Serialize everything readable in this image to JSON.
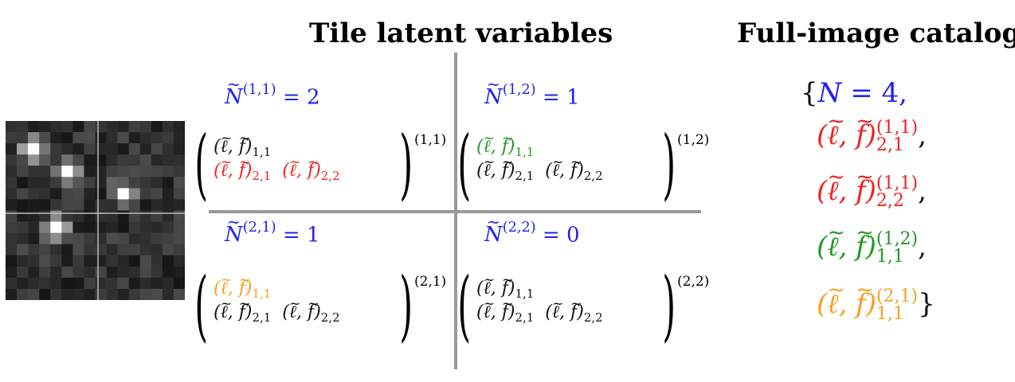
{
  "titles": {
    "tile": "Tile latent variables",
    "catalog": "Full-image catalog"
  },
  "colors": {
    "blue": "#2222ee",
    "red": "#ee2222",
    "green": "#229922",
    "orange": "#f5a023",
    "black": "#111111",
    "divider": "#999999"
  },
  "image": {
    "grid_size": 16,
    "stars": [
      {
        "col": 2,
        "row": 2,
        "intensity": 1.0
      },
      {
        "col": 5,
        "row": 4,
        "intensity": 0.95
      },
      {
        "col": 10,
        "row": 6,
        "intensity": 0.85
      },
      {
        "col": 4,
        "row": 9,
        "intensity": 1.0
      }
    ]
  },
  "tiles": {
    "t11": {
      "count": "= 2",
      "idx": "(1,1)",
      "count_idx": "(1,1)",
      "e11": "(",
      "e11b": ")",
      "s11": "1,1",
      "s21": "2,1",
      "s22": "2,2"
    },
    "t12": {
      "count": "= 1",
      "idx": "(1,2)",
      "count_idx": "(1,2)",
      "s11": "1,1",
      "s21": "2,1",
      "s22": "2,2"
    },
    "t21": {
      "count": "= 1",
      "idx": "(2,1)",
      "count_idx": "(2,1)",
      "s11": "1,1",
      "s21": "2,1",
      "s22": "2,2"
    },
    "t22": {
      "count": "= 0",
      "idx": "(2,2)",
      "count_idx": "(2,2)",
      "s11": "1,1",
      "s21": "2,1",
      "s22": "2,2"
    }
  },
  "catalog": {
    "open": "{",
    "n_label": "N",
    "n_value": "= 4,",
    "entries": [
      {
        "sup": "(1,1)",
        "sub": "2,1",
        "tail": ","
      },
      {
        "sup": "(1,1)",
        "sub": "2,2",
        "tail": ","
      },
      {
        "sup": "(1,2)",
        "sub": "1,1",
        "tail": ","
      },
      {
        "sup": "(2,1)",
        "sub": "1,1",
        "tail": "}"
      }
    ]
  }
}
